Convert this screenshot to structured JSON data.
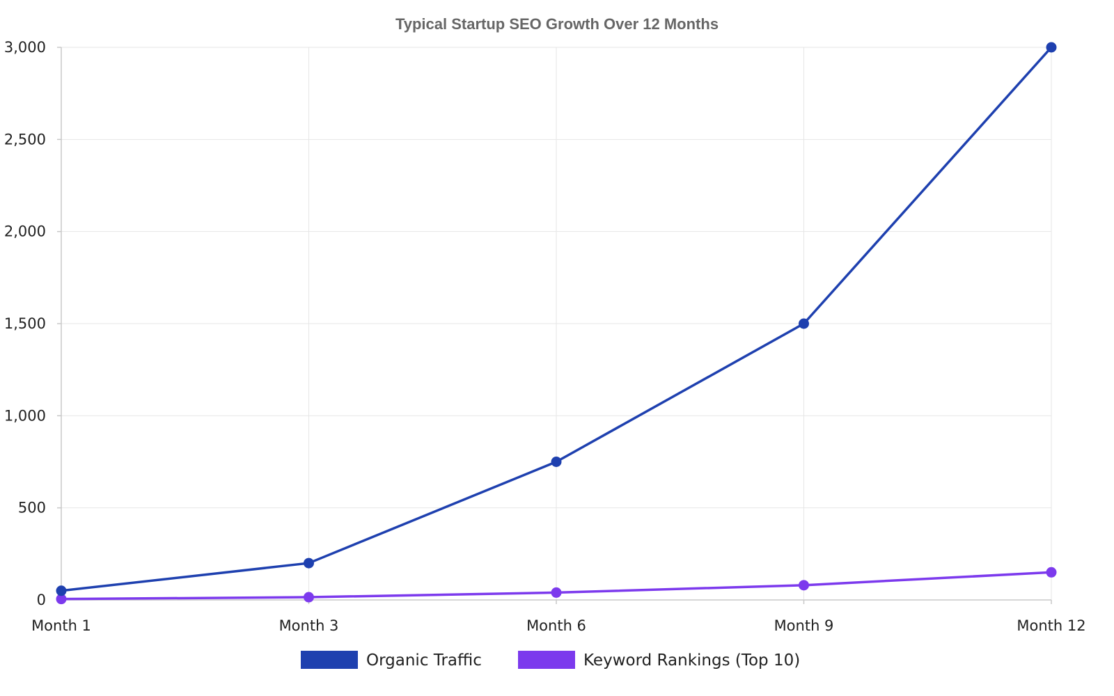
{
  "chart_data": {
    "type": "line",
    "title": "Typical Startup SEO Growth Over 12 Months",
    "xlabel": "",
    "ylabel": "",
    "categories": [
      "Month 1",
      "Month 3",
      "Month 6",
      "Month 9",
      "Month 12"
    ],
    "ylim": [
      0,
      3000
    ],
    "yticks": [
      0,
      500,
      1000,
      1500,
      2000,
      2500,
      3000
    ],
    "ytick_labels": [
      "0",
      "500",
      "1,000",
      "1,500",
      "2,000",
      "2,500",
      "3,000"
    ],
    "grid": true,
    "legend_position": "bottom-center",
    "series": [
      {
        "name": "Organic Traffic",
        "color": "#1e40af",
        "values": [
          50,
          200,
          750,
          1500,
          3000
        ]
      },
      {
        "name": "Keyword Rankings (Top 10)",
        "color": "#7c3aed",
        "values": [
          5,
          15,
          40,
          80,
          150
        ]
      }
    ]
  }
}
